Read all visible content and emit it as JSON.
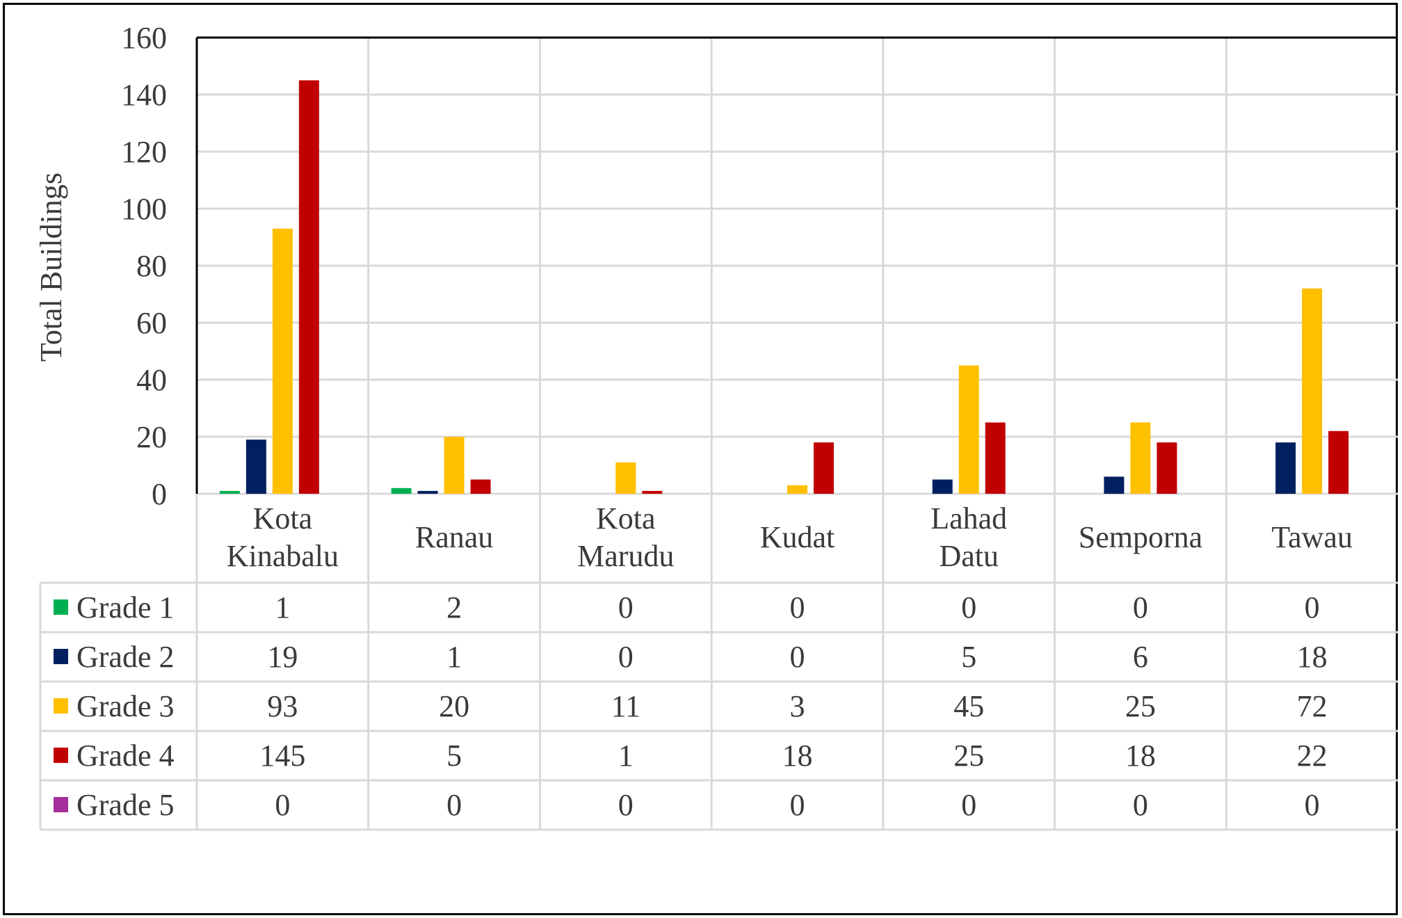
{
  "chart_data": {
    "type": "bar",
    "title": "",
    "xlabel": "",
    "ylabel": "Total Buildings",
    "ylim": [
      0,
      160
    ],
    "yticks": [
      0,
      20,
      40,
      60,
      80,
      100,
      120,
      140,
      160
    ],
    "grid": true,
    "legend": "data-table",
    "categories": [
      [
        "Kota",
        "Kinabalu"
      ],
      [
        "Ranau"
      ],
      [
        "Kota",
        "Marudu"
      ],
      [
        "Kudat"
      ],
      [
        "Lahad",
        "Datu"
      ],
      [
        "Semporna"
      ],
      [
        "Tawau"
      ]
    ],
    "series": [
      {
        "name": "Grade 1",
        "color": "#00b050",
        "values": [
          1,
          2,
          0,
          0,
          0,
          0,
          0
        ]
      },
      {
        "name": "Grade 2",
        "color": "#002060",
        "values": [
          19,
          1,
          0,
          0,
          5,
          6,
          18
        ]
      },
      {
        "name": "Grade 3",
        "color": "#ffc000",
        "values": [
          93,
          20,
          11,
          3,
          45,
          25,
          72
        ]
      },
      {
        "name": "Grade 4",
        "color": "#c00000",
        "values": [
          145,
          5,
          1,
          18,
          25,
          18,
          22
        ]
      },
      {
        "name": "Grade 5",
        "color": "#a5309b",
        "values": [
          0,
          0,
          0,
          0,
          0,
          0,
          0
        ]
      }
    ]
  }
}
